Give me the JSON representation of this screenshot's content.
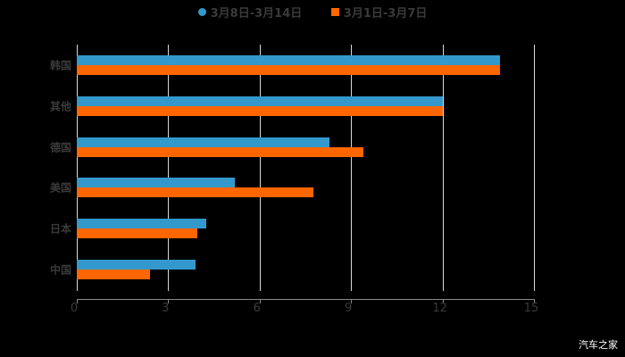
{
  "chart_data": {
    "type": "bar",
    "orientation": "horizontal",
    "title": "",
    "categories": [
      "韩国",
      "其他",
      "德国",
      "美国",
      "日本",
      "中国"
    ],
    "series": [
      {
        "name": "3月8日-3月14日",
        "color": "#3399cc",
        "values": [
          13.9,
          12.0,
          8.3,
          5.2,
          4.25,
          3.9
        ]
      },
      {
        "name": "3月1日-3月7日",
        "color": "#ff6600",
        "values": [
          13.9,
          12.0,
          9.4,
          7.75,
          3.95,
          2.4
        ]
      }
    ],
    "xlabel": "",
    "ylabel": "",
    "xlim": [
      0,
      15
    ],
    "xticks": [
      "0",
      "3",
      "6",
      "9",
      "12",
      "15"
    ],
    "grid": true,
    "legend_position": "top"
  },
  "legend": {
    "items": [
      {
        "label": "3月8日-3月14日",
        "color": "#3399cc",
        "shape": "circle"
      },
      {
        "label": "3月1日-3月7日",
        "color": "#ff6600",
        "shape": "square"
      }
    ]
  },
  "watermark": "汽车之家"
}
